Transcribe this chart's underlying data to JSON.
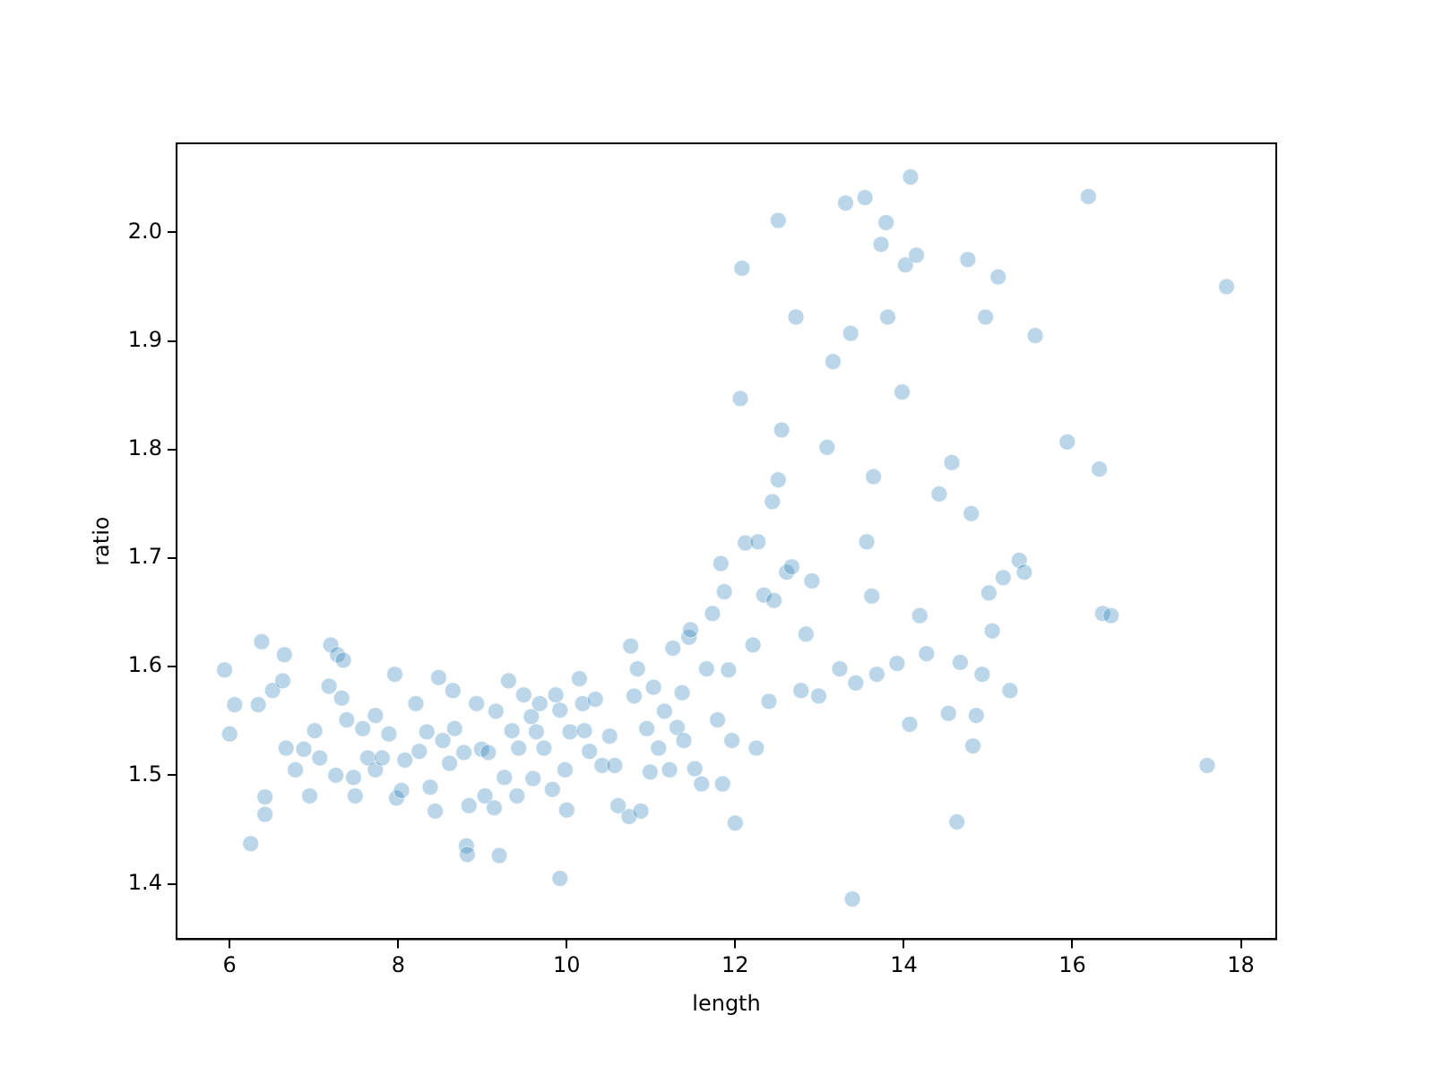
{
  "chart_data": {
    "type": "scatter",
    "xlabel": "length",
    "ylabel": "ratio",
    "grid": false,
    "legend": false,
    "marker": "circle",
    "xlim": [
      5.37,
      18.42
    ],
    "ylim": [
      1.349,
      2.082
    ],
    "xticks": [
      6,
      8,
      10,
      12,
      14,
      16,
      18
    ],
    "yticks": [
      1.4,
      1.5,
      1.6,
      1.7,
      1.8,
      1.9,
      {
        "value": 2,
        "label": "2.0"
      }
    ],
    "series": [
      {
        "color": "#1f77b4",
        "x": [
          5.94,
          6.0,
          6.06,
          6.25,
          6.34,
          6.38,
          6.42,
          6.42,
          6.51,
          6.63,
          6.65,
          6.67,
          6.78,
          6.88,
          6.95,
          7.01,
          7.07,
          7.18,
          7.2,
          7.26,
          7.28,
          7.33,
          7.35,
          7.39,
          7.47,
          7.49,
          7.58,
          7.64,
          7.73,
          7.73,
          7.81,
          7.89,
          7.96,
          7.98,
          8.04,
          8.08,
          8.21,
          8.25,
          8.34,
          8.38,
          8.44,
          8.48,
          8.53,
          8.61,
          8.65,
          8.67,
          8.78,
          8.81,
          8.82,
          8.84,
          8.93,
          8.99,
          9.03,
          9.07,
          9.14,
          9.16,
          9.2,
          9.26,
          9.31,
          9.35,
          9.41,
          9.43,
          9.49,
          9.58,
          9.6,
          9.64,
          9.68,
          9.73,
          9.83,
          9.87,
          9.92,
          9.92,
          9.98,
          10.0,
          10.04,
          10.15,
          10.19,
          10.21,
          10.27,
          10.34,
          10.42,
          10.51,
          10.57,
          10.61,
          10.74,
          10.76,
          10.8,
          10.84,
          10.88,
          10.95,
          10.99,
          11.03,
          11.09,
          11.16,
          11.22,
          11.26,
          11.31,
          11.37,
          11.39,
          11.45,
          11.47,
          11.52,
          11.6,
          11.66,
          11.73,
          11.79,
          11.83,
          11.87,
          11.85,
          11.92,
          11.96,
          12.0,
          12.06,
          12.08,
          12.12,
          12.21,
          12.25,
          12.27,
          12.34,
          12.4,
          12.44,
          12.46,
          12.51,
          12.51,
          12.55,
          12.61,
          12.67,
          12.72,
          12.78,
          12.84,
          12.91,
          12.99,
          13.09,
          13.16,
          13.24,
          13.31,
          13.37,
          13.39,
          13.43,
          13.54,
          13.56,
          13.62,
          13.64,
          13.68,
          13.73,
          13.79,
          13.81,
          13.92,
          13.98,
          14.02,
          14.07,
          14.08,
          14.15,
          14.19,
          14.27,
          14.42,
          14.53,
          14.57,
          14.63,
          14.67,
          14.76,
          14.8,
          14.82,
          14.86,
          14.93,
          14.97,
          15.01,
          15.05,
          15.12,
          15.18,
          15.26,
          15.37,
          15.43,
          15.56,
          15.94,
          16.19,
          16.32,
          16.36,
          16.46,
          17.6,
          17.83
        ],
        "values": [
          1.597,
          1.538,
          1.565,
          1.437,
          1.565,
          1.623,
          1.48,
          1.464,
          1.578,
          1.587,
          1.611,
          1.525,
          1.505,
          1.524,
          1.481,
          1.541,
          1.516,
          1.582,
          1.62,
          1.5,
          1.611,
          1.571,
          1.606,
          1.551,
          1.498,
          1.481,
          1.543,
          1.516,
          1.555,
          1.505,
          1.516,
          1.538,
          1.593,
          1.479,
          1.486,
          1.514,
          1.566,
          1.522,
          1.54,
          1.489,
          1.467,
          1.59,
          1.532,
          1.511,
          1.578,
          1.543,
          1.521,
          1.435,
          1.427,
          1.472,
          1.566,
          1.524,
          1.481,
          1.521,
          1.47,
          1.559,
          1.426,
          1.498,
          1.587,
          1.541,
          1.481,
          1.525,
          1.574,
          1.554,
          1.497,
          1.54,
          1.566,
          1.525,
          1.487,
          1.574,
          1.56,
          1.405,
          1.505,
          1.468,
          1.54,
          1.589,
          1.566,
          1.541,
          1.522,
          1.57,
          1.509,
          1.536,
          1.509,
          1.472,
          1.462,
          1.619,
          1.573,
          1.598,
          1.467,
          1.543,
          1.503,
          1.581,
          1.525,
          1.559,
          1.505,
          1.617,
          1.544,
          1.576,
          1.532,
          1.627,
          1.634,
          1.506,
          1.492,
          1.598,
          1.649,
          1.551,
          1.695,
          1.669,
          1.492,
          1.597,
          1.532,
          1.456,
          1.847,
          1.967,
          1.714,
          1.62,
          1.525,
          1.715,
          1.666,
          1.568,
          1.752,
          1.661,
          1.772,
          2.011,
          1.818,
          1.687,
          1.692,
          1.922,
          1.578,
          1.63,
          1.679,
          1.573,
          1.802,
          1.881,
          1.598,
          2.027,
          1.907,
          1.386,
          1.585,
          2.032,
          1.715,
          1.665,
          1.775,
          1.593,
          1.989,
          2.009,
          1.922,
          1.603,
          1.853,
          1.97,
          1.547,
          2.051,
          1.979,
          1.647,
          1.612,
          1.759,
          1.557,
          1.788,
          1.457,
          1.604,
          1.975,
          1.741,
          1.527,
          1.555,
          1.593,
          1.922,
          1.668,
          1.633,
          1.959,
          1.682,
          1.578,
          1.698,
          1.687,
          1.905,
          1.807,
          2.033,
          1.782,
          1.649,
          1.647,
          1.509,
          1.95
        ]
      }
    ]
  }
}
